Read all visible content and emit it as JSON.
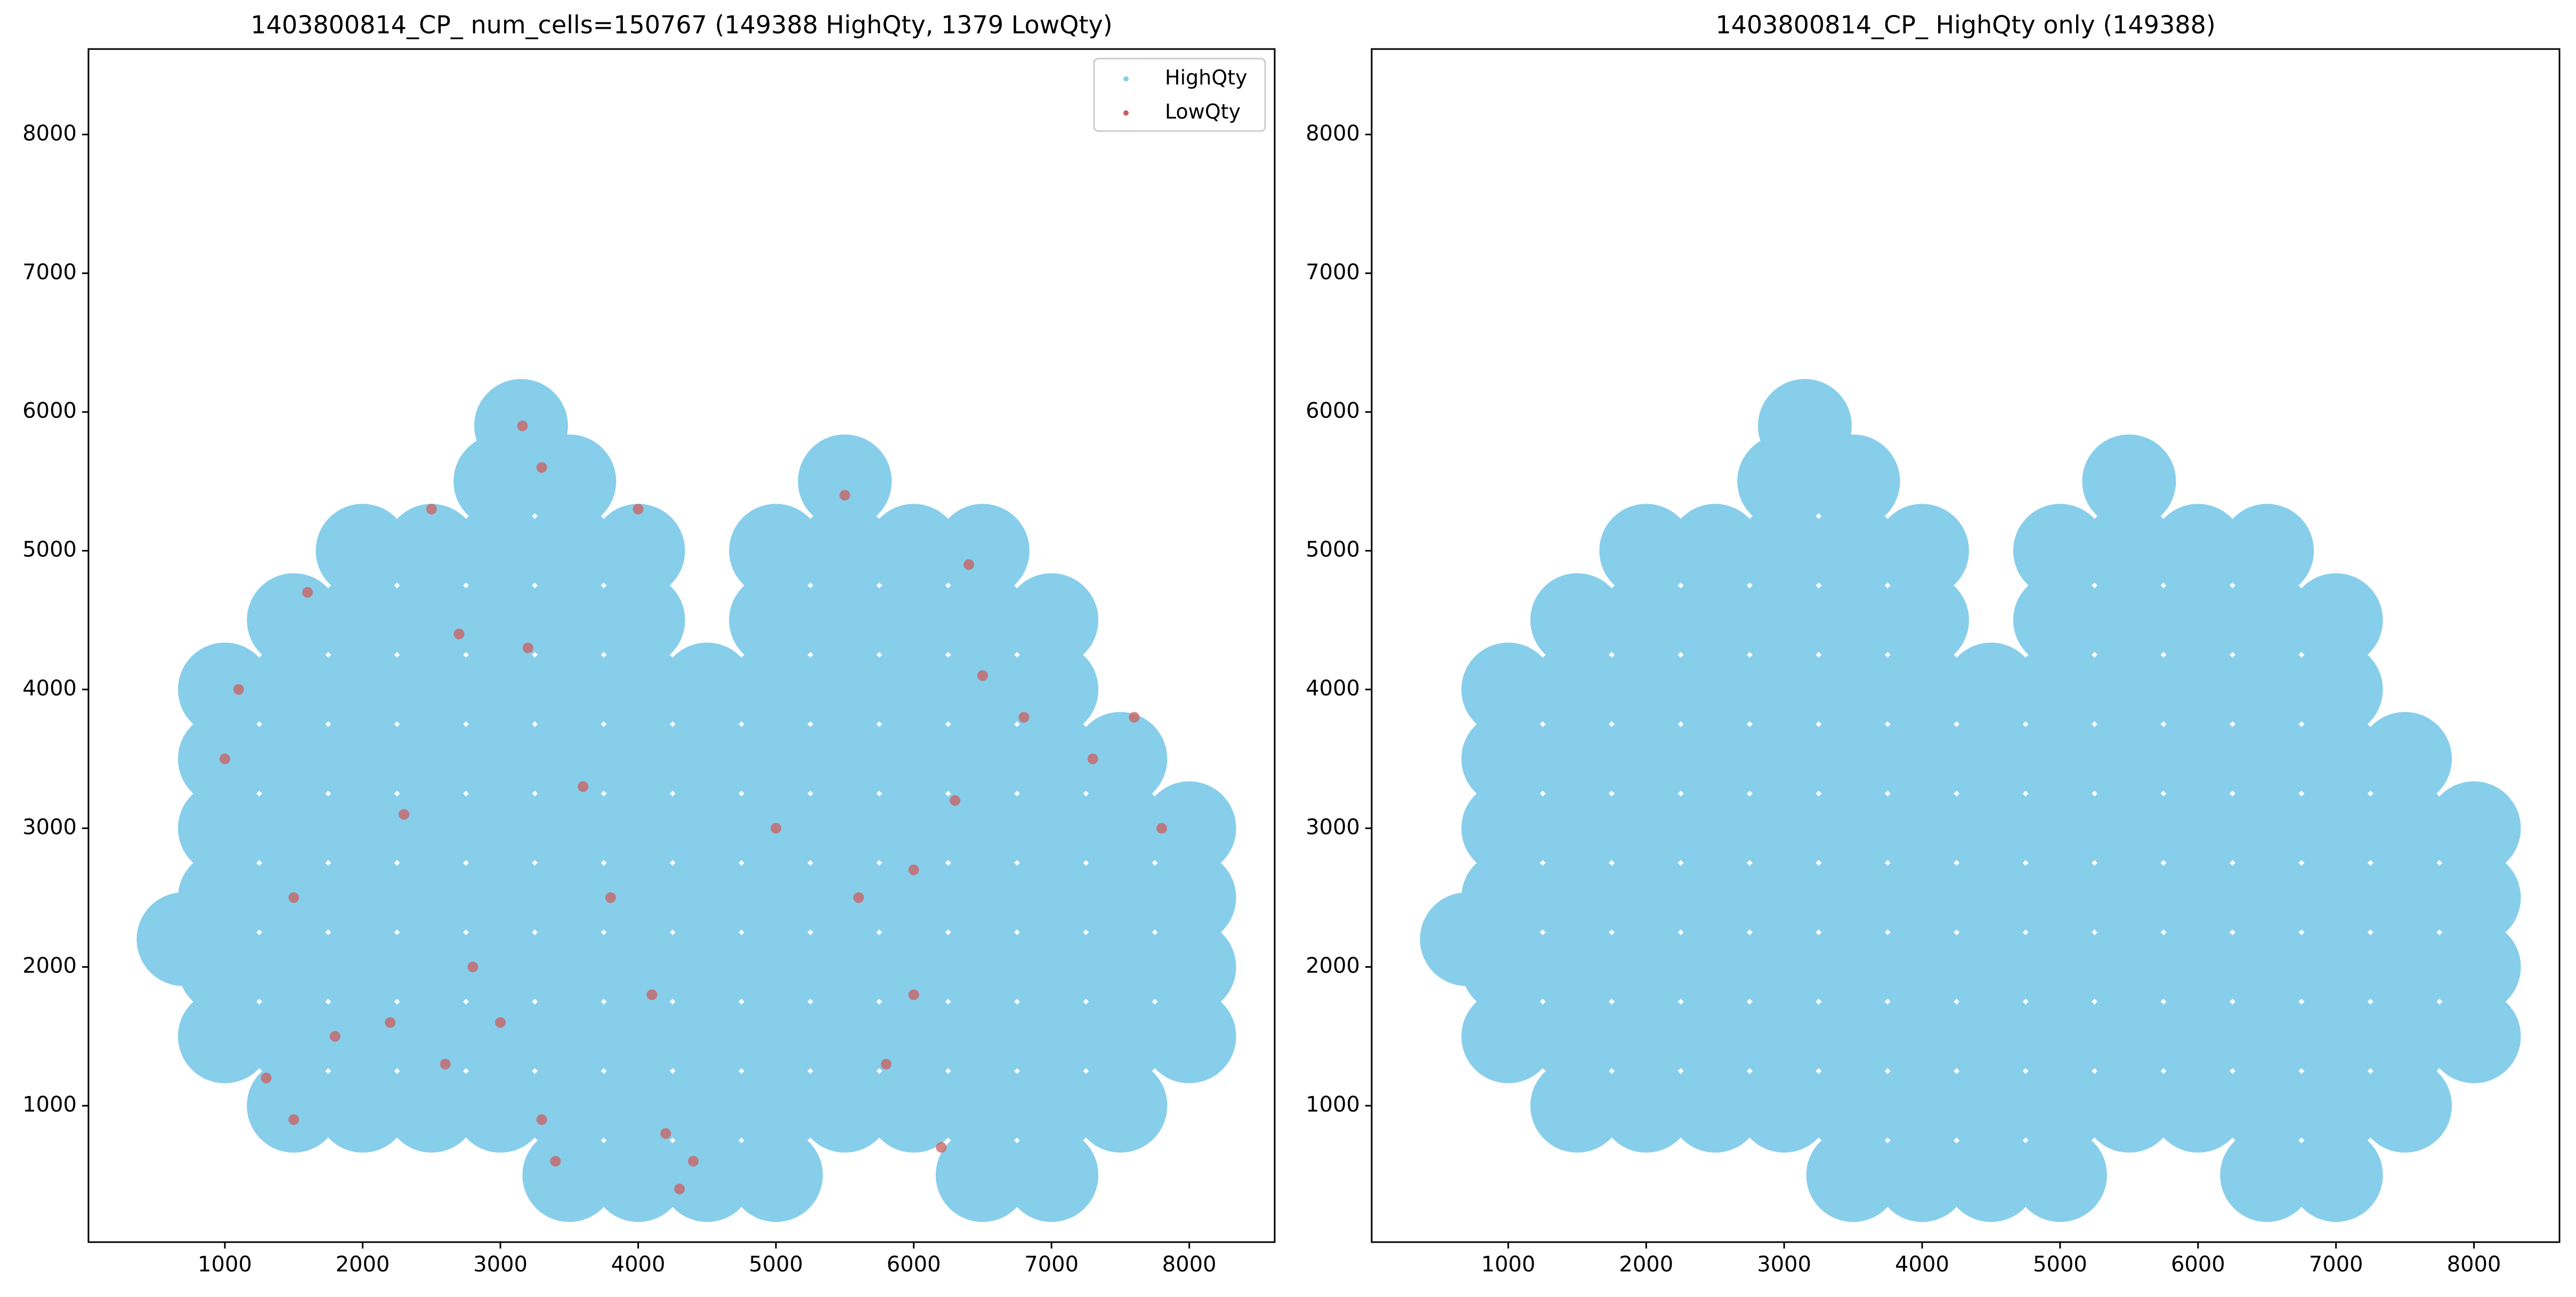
{
  "chart_data": [
    {
      "type": "scatter",
      "title": "1403800814_CP_ num_cells=150767 (149388 HighQty, 1379 LowQty)",
      "xlim": [
        10,
        8620
      ],
      "ylim": [
        17,
        8616
      ],
      "xticks": [
        1000,
        2000,
        3000,
        4000,
        5000,
        6000,
        7000,
        8000
      ],
      "yticks": [
        1000,
        2000,
        3000,
        4000,
        5000,
        6000,
        7000,
        8000
      ],
      "legend": "upper right",
      "series": [
        {
          "name": "HighQty",
          "color": "#87ceeb",
          "x": [
            3500,
            4000,
            4500,
            5000,
            6500,
            7000,
            1500,
            2000,
            2500,
            3000,
            3500,
            4000,
            4500,
            5000,
            5500,
            6000,
            6500,
            7000,
            7500,
            1000,
            1500,
            2000,
            2500,
            3000,
            3500,
            4000,
            4500,
            5000,
            5500,
            6000,
            6500,
            7000,
            7500,
            8000,
            1000,
            1500,
            2000,
            2500,
            3000,
            3500,
            4000,
            4500,
            5000,
            5500,
            6000,
            6500,
            7000,
            7500,
            8000,
            1000,
            1500,
            2000,
            2500,
            3000,
            3500,
            4000,
            4500,
            5000,
            5500,
            6000,
            6500,
            7000,
            7500,
            8000,
            1000,
            1500,
            2000,
            2500,
            3000,
            3500,
            4000,
            4500,
            5000,
            5500,
            6000,
            6500,
            7000,
            7500,
            8000,
            1000,
            1500,
            2000,
            2500,
            3000,
            3500,
            4000,
            4500,
            5000,
            5500,
            6000,
            6500,
            7000,
            7500,
            1000,
            1500,
            2000,
            2500,
            3000,
            3500,
            4000,
            4500,
            5000,
            5500,
            6000,
            6500,
            7000,
            1500,
            2000,
            2500,
            3000,
            3500,
            4000,
            5000,
            5500,
            6000,
            6500,
            7000,
            2000,
            2500,
            3000,
            3500,
            4000,
            5000,
            5500,
            6000,
            6500,
            3000,
            3500,
            5500,
            3150,
            700
          ],
          "y": [
            500,
            500,
            500,
            500,
            500,
            500,
            1000,
            1000,
            1000,
            1000,
            1000,
            1000,
            1000,
            1000,
            1000,
            1000,
            1000,
            1000,
            1000,
            1500,
            1500,
            1500,
            1500,
            1500,
            1500,
            1500,
            1500,
            1500,
            1500,
            1500,
            1500,
            1500,
            1500,
            1500,
            2000,
            2000,
            2000,
            2000,
            2000,
            2000,
            2000,
            2000,
            2000,
            2000,
            2000,
            2000,
            2000,
            2000,
            2000,
            2500,
            2500,
            2500,
            2500,
            2500,
            2500,
            2500,
            2500,
            2500,
            2500,
            2500,
            2500,
            2500,
            2500,
            2500,
            3000,
            3000,
            3000,
            3000,
            3000,
            3000,
            3000,
            3000,
            3000,
            3000,
            3000,
            3000,
            3000,
            3000,
            3000,
            3500,
            3500,
            3500,
            3500,
            3500,
            3500,
            3500,
            3500,
            3500,
            3500,
            3500,
            3500,
            3500,
            3500,
            4000,
            4000,
            4000,
            4000,
            4000,
            4000,
            4000,
            4000,
            4000,
            4000,
            4000,
            4000,
            4000,
            4500,
            4500,
            4500,
            4500,
            4500,
            4500,
            4500,
            4500,
            4500,
            4500,
            4500,
            5000,
            5000,
            5000,
            5000,
            5000,
            5000,
            5000,
            5000,
            5000,
            5500,
            5500,
            5500,
            5900,
            2200
          ]
        },
        {
          "name": "LowQty",
          "color": "#cd5c5c",
          "x": [
            1000,
            1100,
            1300,
            1500,
            1800,
            2200,
            2600,
            2800,
            3000,
            3300,
            3400,
            3600,
            4100,
            4200,
            4300,
            4400,
            4000,
            3300,
            3160,
            2500,
            1600,
            2700,
            3200,
            5000,
            5600,
            6000,
            6300,
            6500,
            6800,
            7300,
            7800,
            6000,
            5800,
            6200,
            5500,
            6400,
            7600,
            3800,
            2300,
            1500
          ],
          "y": [
            3500,
            4000,
            1200,
            900,
            1500,
            1600,
            1300,
            2000,
            1600,
            900,
            600,
            3300,
            1800,
            800,
            400,
            600,
            5300,
            5600,
            5900,
            5300,
            4700,
            4400,
            4300,
            3000,
            2500,
            2700,
            3200,
            4100,
            3800,
            3500,
            3000,
            1800,
            1300,
            700,
            5400,
            4900,
            3800,
            2500,
            3100,
            2500
          ]
        }
      ]
    },
    {
      "type": "scatter",
      "title": "1403800814_CP_ HighQty only (149388)",
      "xlim": [
        10,
        8620
      ],
      "ylim": [
        17,
        8616
      ],
      "xticks": [
        1000,
        2000,
        3000,
        4000,
        5000,
        6000,
        7000,
        8000
      ],
      "yticks": [
        1000,
        2000,
        3000,
        4000,
        5000,
        6000,
        7000,
        8000
      ],
      "series": [
        {
          "color": "#87ceeb",
          "x": [
            3500,
            4000,
            4500,
            5000,
            6500,
            7000,
            1500,
            2000,
            2500,
            3000,
            3500,
            4000,
            4500,
            5000,
            5500,
            6000,
            6500,
            7000,
            7500,
            1000,
            1500,
            2000,
            2500,
            3000,
            3500,
            4000,
            4500,
            5000,
            5500,
            6000,
            6500,
            7000,
            7500,
            8000,
            1000,
            1500,
            2000,
            2500,
            3000,
            3500,
            4000,
            4500,
            5000,
            5500,
            6000,
            6500,
            7000,
            7500,
            8000,
            1000,
            1500,
            2000,
            2500,
            3000,
            3500,
            4000,
            4500,
            5000,
            5500,
            6000,
            6500,
            7000,
            7500,
            8000,
            1000,
            1500,
            2000,
            2500,
            3000,
            3500,
            4000,
            4500,
            5000,
            5500,
            6000,
            6500,
            7000,
            7500,
            8000,
            1000,
            1500,
            2000,
            2500,
            3000,
            3500,
            4000,
            4500,
            5000,
            5500,
            6000,
            6500,
            7000,
            7500,
            1000,
            1500,
            2000,
            2500,
            3000,
            3500,
            4000,
            4500,
            5000,
            5500,
            6000,
            6500,
            7000,
            1500,
            2000,
            2500,
            3000,
            3500,
            4000,
            5000,
            5500,
            6000,
            6500,
            7000,
            2000,
            2500,
            3000,
            3500,
            4000,
            5000,
            5500,
            6000,
            6500,
            3000,
            3500,
            5500,
            3150,
            700
          ],
          "y": [
            500,
            500,
            500,
            500,
            500,
            500,
            1000,
            1000,
            1000,
            1000,
            1000,
            1000,
            1000,
            1000,
            1000,
            1000,
            1000,
            1000,
            1000,
            1500,
            1500,
            1500,
            1500,
            1500,
            1500,
            1500,
            1500,
            1500,
            1500,
            1500,
            1500,
            1500,
            1500,
            1500,
            2000,
            2000,
            2000,
            2000,
            2000,
            2000,
            2000,
            2000,
            2000,
            2000,
            2000,
            2000,
            2000,
            2000,
            2000,
            2500,
            2500,
            2500,
            2500,
            2500,
            2500,
            2500,
            2500,
            2500,
            2500,
            2500,
            2500,
            2500,
            2500,
            2500,
            3000,
            3000,
            3000,
            3000,
            3000,
            3000,
            3000,
            3000,
            3000,
            3000,
            3000,
            3000,
            3000,
            3000,
            3000,
            3500,
            3500,
            3500,
            3500,
            3500,
            3500,
            3500,
            3500,
            3500,
            3500,
            3500,
            3500,
            3500,
            3500,
            4000,
            4000,
            4000,
            4000,
            4000,
            4000,
            4000,
            4000,
            4000,
            4000,
            4000,
            4000,
            4000,
            4500,
            4500,
            4500,
            4500,
            4500,
            4500,
            4500,
            4500,
            4500,
            4500,
            4500,
            5000,
            5000,
            5000,
            5000,
            5000,
            5000,
            5000,
            5000,
            5000,
            5500,
            5500,
            5500,
            5900,
            2200
          ]
        }
      ]
    }
  ]
}
